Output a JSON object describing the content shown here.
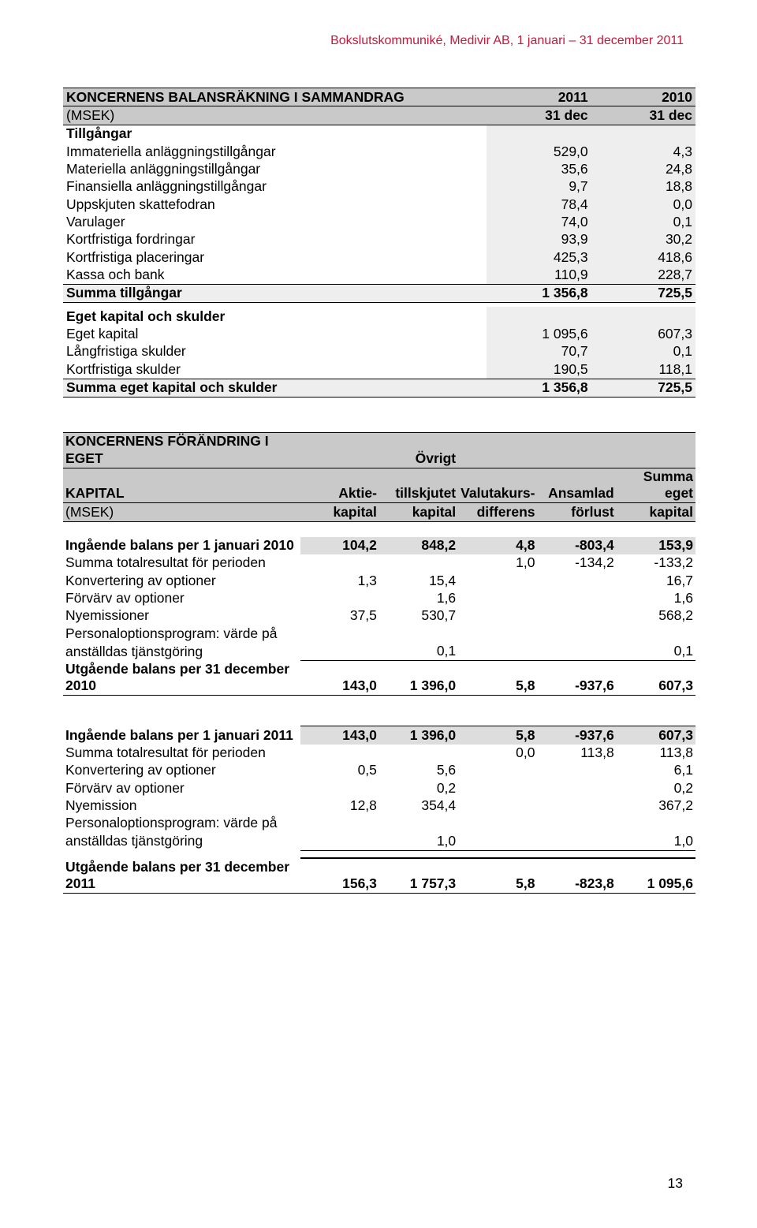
{
  "header": "Bokslutskommuniké, Medivir AB, 1 januari – 31 december 2011",
  "page_number": "13",
  "balance": {
    "title": "KONCERNENS BALANSRÄKNING I SAMMANDRAG",
    "unit": "(MSEK)",
    "col1": "2011",
    "col2": "2010",
    "sub1": "31 dec",
    "sub2": "31 dec",
    "section1": "Tillgångar",
    "rows1": [
      {
        "l": "Immateriella anläggningstillgångar",
        "a": "529,0",
        "b": "4,3"
      },
      {
        "l": "Materiella anläggningstillgångar",
        "a": "35,6",
        "b": "24,8"
      },
      {
        "l": "Finansiella anläggningstillgångar",
        "a": "9,7",
        "b": "18,8"
      },
      {
        "l": "Uppskjuten skattefodran",
        "a": "78,4",
        "b": "0,0"
      },
      {
        "l": "Varulager",
        "a": "74,0",
        "b": "0,1"
      },
      {
        "l": "Kortfristiga fordringar",
        "a": "93,9",
        "b": "30,2"
      },
      {
        "l": "Kortfristiga placeringar",
        "a": "425,3",
        "b": "418,6"
      },
      {
        "l": "Kassa och bank",
        "a": "110,9",
        "b": "228,7"
      }
    ],
    "sum1_l": "Summa tillgångar",
    "sum1_a": "1 356,8",
    "sum1_b": "725,5",
    "section2": "Eget kapital och skulder",
    "rows2": [
      {
        "l": "Eget kapital",
        "a": "1 095,6",
        "b": "607,3"
      },
      {
        "l": "Långfristiga skulder",
        "a": "70,7",
        "b": "0,1"
      },
      {
        "l": "Kortfristiga skulder",
        "a": "190,5",
        "b": "118,1"
      }
    ],
    "sum2_l": "Summa eget kapital och skulder",
    "sum2_a": "1 356,8",
    "sum2_b": "725,5"
  },
  "equity": {
    "title_l1": "KONCERNENS FÖRÄNDRING I EGET",
    "title_l2": "KAPITAL",
    "unit": "(MSEK)",
    "h_c1_l2": "Aktie-",
    "h_c1_l3": "kapital",
    "h_c2_l1": "Övrigt",
    "h_c2_l2": "tillskjutet",
    "h_c2_l3": "kapital",
    "h_c3_l2": "Valutakurs-",
    "h_c3_l3": "differens",
    "h_c4_l2": "Ansamlad",
    "h_c4_l3": "förlust",
    "h_c5_l2": "Summa eget",
    "h_c5_l3": "kapital",
    "period1": {
      "in_l": "Ingående balans per 1 januari 2010",
      "in": [
        "104,2",
        "848,2",
        "4,8",
        "-803,4",
        "153,9"
      ],
      "rows": [
        {
          "l": "Summa totalresultat för perioden",
          "v": [
            "",
            "",
            "1,0",
            "-134,2",
            "-133,2"
          ]
        },
        {
          "l": "Konvertering av optioner",
          "v": [
            "1,3",
            "15,4",
            "",
            "",
            "16,7"
          ]
        },
        {
          "l": "Förvärv av optioner",
          "v": [
            "",
            "1,6",
            "",
            "",
            "1,6"
          ]
        },
        {
          "l": "Nyemissioner",
          "v": [
            "37,5",
            "530,7",
            "",
            "",
            "568,2"
          ]
        }
      ],
      "multi_l1": "Personaloptionsprogram: värde på",
      "multi_l2": "anställdas tjänstgöring",
      "multi_v": [
        "",
        "0,1",
        "",
        "",
        "0,1"
      ],
      "out_l": "Utgående balans per 31 december 2010",
      "out": [
        "143,0",
        "1 396,0",
        "5,8",
        "-937,6",
        "607,3"
      ]
    },
    "period2": {
      "in_l": "Ingående balans per 1 januari 2011",
      "in": [
        "143,0",
        "1 396,0",
        "5,8",
        "-937,6",
        "607,3"
      ],
      "rows": [
        {
          "l": "Summa totalresultat för perioden",
          "v": [
            "",
            "",
            "0,0",
            "113,8",
            "113,8"
          ]
        },
        {
          "l": "Konvertering av optioner",
          "v": [
            "0,5",
            "5,6",
            "",
            "",
            "6,1"
          ]
        },
        {
          "l": "Förvärv av optioner",
          "v": [
            "",
            "0,2",
            "",
            "",
            "0,2"
          ]
        },
        {
          "l": "Nyemission",
          "v": [
            "12,8",
            "354,4",
            "",
            "",
            "367,2"
          ]
        }
      ],
      "multi_l1": "Personaloptionsprogram: värde på",
      "multi_l2": "anställdas tjänstgöring",
      "multi_v": [
        "",
        "1,0",
        "",
        "",
        "1,0"
      ],
      "out_l": "Utgående balans per 31 december 2011",
      "out": [
        "156,3",
        "1 757,3",
        "5,8",
        "-823,8",
        "1 095,6"
      ]
    }
  }
}
